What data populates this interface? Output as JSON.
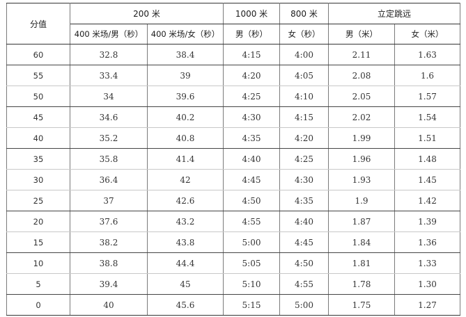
{
  "table": {
    "header_score": "分值",
    "groups": {
      "run_200": "200 米",
      "run_1000": "1000 米",
      "run_800": "800 米",
      "long_jump": "立定跳远"
    },
    "subheaders": {
      "run_200_male": "400 米场/男（秒）",
      "run_200_female": "400 米场/女（秒）",
      "run_1000_male": "男（秒）",
      "run_800_female": "女（秒）",
      "jump_male": "男（米）",
      "jump_female": "女（米）"
    },
    "rows": [
      {
        "score": "60",
        "m200_male": "32.8",
        "m200_female": "38.4",
        "m1000_male": "4:15",
        "m800_female": "4:00",
        "jump_male": "2.11",
        "jump_female": "1.63"
      },
      {
        "score": "55",
        "m200_male": "33.4",
        "m200_female": "39",
        "m1000_male": "4:20",
        "m800_female": "4:05",
        "jump_male": "2.08",
        "jump_female": "1.6"
      },
      {
        "score": "50",
        "m200_male": "34",
        "m200_female": "39.6",
        "m1000_male": "4:25",
        "m800_female": "4:10",
        "jump_male": "2.05",
        "jump_female": "1.57"
      },
      {
        "score": "45",
        "m200_male": "34.6",
        "m200_female": "40.2",
        "m1000_male": "4:30",
        "m800_female": "4:15",
        "jump_male": "2.02",
        "jump_female": "1.54"
      },
      {
        "score": "40",
        "m200_male": "35.2",
        "m200_female": "40.8",
        "m1000_male": "4:35",
        "m800_female": "4:20",
        "jump_male": "1.99",
        "jump_female": "1.51"
      },
      {
        "score": "35",
        "m200_male": "35.8",
        "m200_female": "41.4",
        "m1000_male": "4:40",
        "m800_female": "4:25",
        "jump_male": "1.96",
        "jump_female": "1.48"
      },
      {
        "score": "30",
        "m200_male": "36.4",
        "m200_female": "42",
        "m1000_male": "4:45",
        "m800_female": "4:30",
        "jump_male": "1.93",
        "jump_female": "1.45"
      },
      {
        "score": "25",
        "m200_male": "37",
        "m200_female": "42.6",
        "m1000_male": "4:50",
        "m800_female": "4:35",
        "jump_male": "1.9",
        "jump_female": "1.42"
      },
      {
        "score": "20",
        "m200_male": "37.6",
        "m200_female": "43.2",
        "m1000_male": "4:55",
        "m800_female": "4:40",
        "jump_male": "1.87",
        "jump_female": "1.39"
      },
      {
        "score": "15",
        "m200_male": "38.2",
        "m200_female": "43.8",
        "m1000_male": "5:00",
        "m800_female": "4:45",
        "jump_male": "1.84",
        "jump_female": "1.36"
      },
      {
        "score": "10",
        "m200_male": "38.8",
        "m200_female": "44.4",
        "m1000_male": "5:05",
        "m800_female": "4:50",
        "jump_male": "1.81",
        "jump_female": "1.33"
      },
      {
        "score": "5",
        "m200_male": "39.4",
        "m200_female": "45",
        "m1000_male": "5:10",
        "m800_female": "4:55",
        "jump_male": "1.78",
        "jump_female": "1.30"
      },
      {
        "score": "0",
        "m200_male": "40",
        "m200_female": "45.6",
        "m1000_male": "5:15",
        "m800_female": "5:00",
        "jump_male": "1.75",
        "jump_female": "1.27"
      }
    ]
  }
}
